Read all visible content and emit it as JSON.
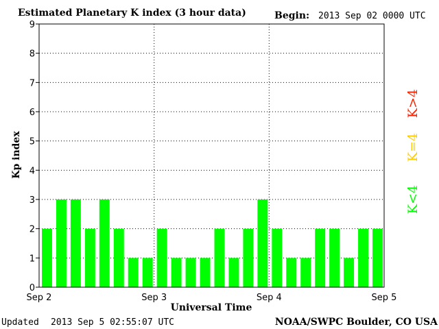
{
  "header": {
    "title": "Estimated Planetary K index (3 hour data)",
    "begin_label": "Begin:",
    "begin_value": "2013 Sep 02 0000 UTC"
  },
  "footer": {
    "updated_label": "Updated",
    "updated_value": "2013 Sep  5 02:55:07 UTC",
    "source": "NOAA/SWPC Boulder, CO USA"
  },
  "legend": {
    "high": "K>4",
    "equal": "K=4",
    "low": "K<4"
  },
  "colors": {
    "low": "#00ff00",
    "equal": "#ffcc00",
    "high": "#ff2200",
    "axis": "#000000"
  },
  "chart_data": {
    "type": "bar",
    "title": "Estimated Planetary K index (3 hour data)",
    "xlabel": "Universal Time",
    "ylabel": "Kp index",
    "ylim": [
      0,
      9
    ],
    "yticks": [
      "0",
      "1",
      "2",
      "3",
      "4",
      "5",
      "6",
      "7",
      "8",
      "9"
    ],
    "xticks": [
      "Sep 2",
      "Sep 3",
      "Sep 4",
      "Sep 5"
    ],
    "grid": true,
    "bins_per_day": 8,
    "values": [
      2,
      3,
      3,
      2,
      3,
      2,
      1,
      1,
      2,
      1,
      1,
      1,
      2,
      1,
      2,
      3,
      2,
      1,
      1,
      2,
      2,
      1,
      2,
      2
    ]
  }
}
